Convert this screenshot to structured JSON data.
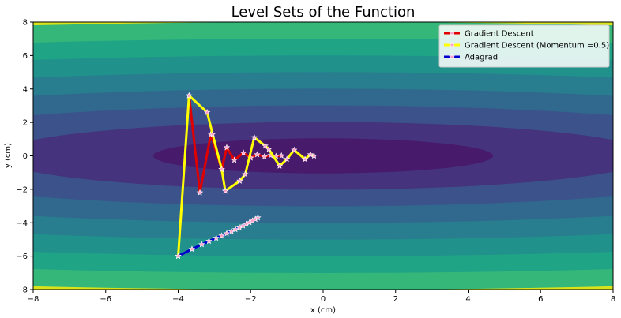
{
  "chart_data": {
    "type": "contour",
    "title": "Level Sets of the Function",
    "xlabel": "x (cm)",
    "ylabel": "y (cm)",
    "xlim": [
      -8,
      8
    ],
    "ylim": [
      -8,
      8
    ],
    "xticks": [
      -8,
      -6,
      -4,
      -2,
      0,
      2,
      4,
      6,
      8
    ],
    "yticks": [
      -8,
      -6,
      -4,
      -2,
      0,
      2,
      4,
      6,
      8
    ],
    "grid": false,
    "legend_position": "top-right",
    "contour": {
      "function": "0.1*x^2 + 2*y^2",
      "levels": [
        0,
        2.2,
        8.2,
        18.2,
        32.2,
        50.2,
        72.2,
        98.2,
        128.2,
        134
      ],
      "colors": [
        "#481a6c",
        "#45337d",
        "#3b528b",
        "#31688e",
        "#287d8e",
        "#21918c",
        "#20a486",
        "#35b779",
        "#7ad151",
        "#d9e21b"
      ]
    },
    "series": [
      {
        "name": "Gradient Descent",
        "color": "#e00000",
        "marker_color": "#ff9ec9",
        "points": [
          [
            -3.7,
            3.6
          ],
          [
            -3.4,
            -2.2
          ],
          [
            -3.1,
            1.3
          ],
          [
            -2.8,
            -0.8
          ],
          [
            -2.66,
            0.5
          ],
          [
            -2.45,
            -0.25
          ],
          [
            -2.2,
            0.18
          ],
          [
            -2.0,
            -0.12
          ],
          [
            -1.82,
            0.08
          ],
          [
            -1.62,
            -0.05
          ],
          [
            -1.45,
            0.03
          ],
          [
            -1.3,
            -0.02
          ],
          [
            -1.15,
            0.01
          ]
        ]
      },
      {
        "name": "Gradient Descent (Momentum =0.5)",
        "color": "#ffff00",
        "marker_color": "#ff9ec9",
        "points": [
          [
            -4.0,
            -6.0
          ],
          [
            -3.7,
            3.6
          ],
          [
            -3.2,
            2.6
          ],
          [
            -3.05,
            1.3
          ],
          [
            -2.8,
            -0.8
          ],
          [
            -2.7,
            -2.1
          ],
          [
            -2.3,
            -1.5
          ],
          [
            -2.15,
            -1.1
          ],
          [
            -1.9,
            1.1
          ],
          [
            -1.6,
            0.6
          ],
          [
            -1.5,
            0.4
          ],
          [
            -1.2,
            -0.6
          ],
          [
            -1.0,
            -0.2
          ],
          [
            -0.8,
            0.35
          ],
          [
            -0.5,
            -0.2
          ],
          [
            -0.35,
            0.08
          ],
          [
            -0.25,
            0.0
          ]
        ]
      },
      {
        "name": "Adagrad",
        "color": "#0000cc",
        "marker_color": "#ff9ec9",
        "points": [
          [
            -4.0,
            -6.0
          ],
          [
            -3.62,
            -5.58
          ],
          [
            -3.35,
            -5.3
          ],
          [
            -3.15,
            -5.1
          ],
          [
            -2.95,
            -4.92
          ],
          [
            -2.8,
            -4.78
          ],
          [
            -2.66,
            -4.64
          ],
          [
            -2.53,
            -4.52
          ],
          [
            -2.42,
            -4.4
          ],
          [
            -2.31,
            -4.29
          ],
          [
            -2.21,
            -4.18
          ],
          [
            -2.12,
            -4.08
          ],
          [
            -2.03,
            -3.98
          ],
          [
            -1.95,
            -3.88
          ],
          [
            -1.87,
            -3.79
          ],
          [
            -1.8,
            -3.7
          ]
        ]
      }
    ]
  }
}
